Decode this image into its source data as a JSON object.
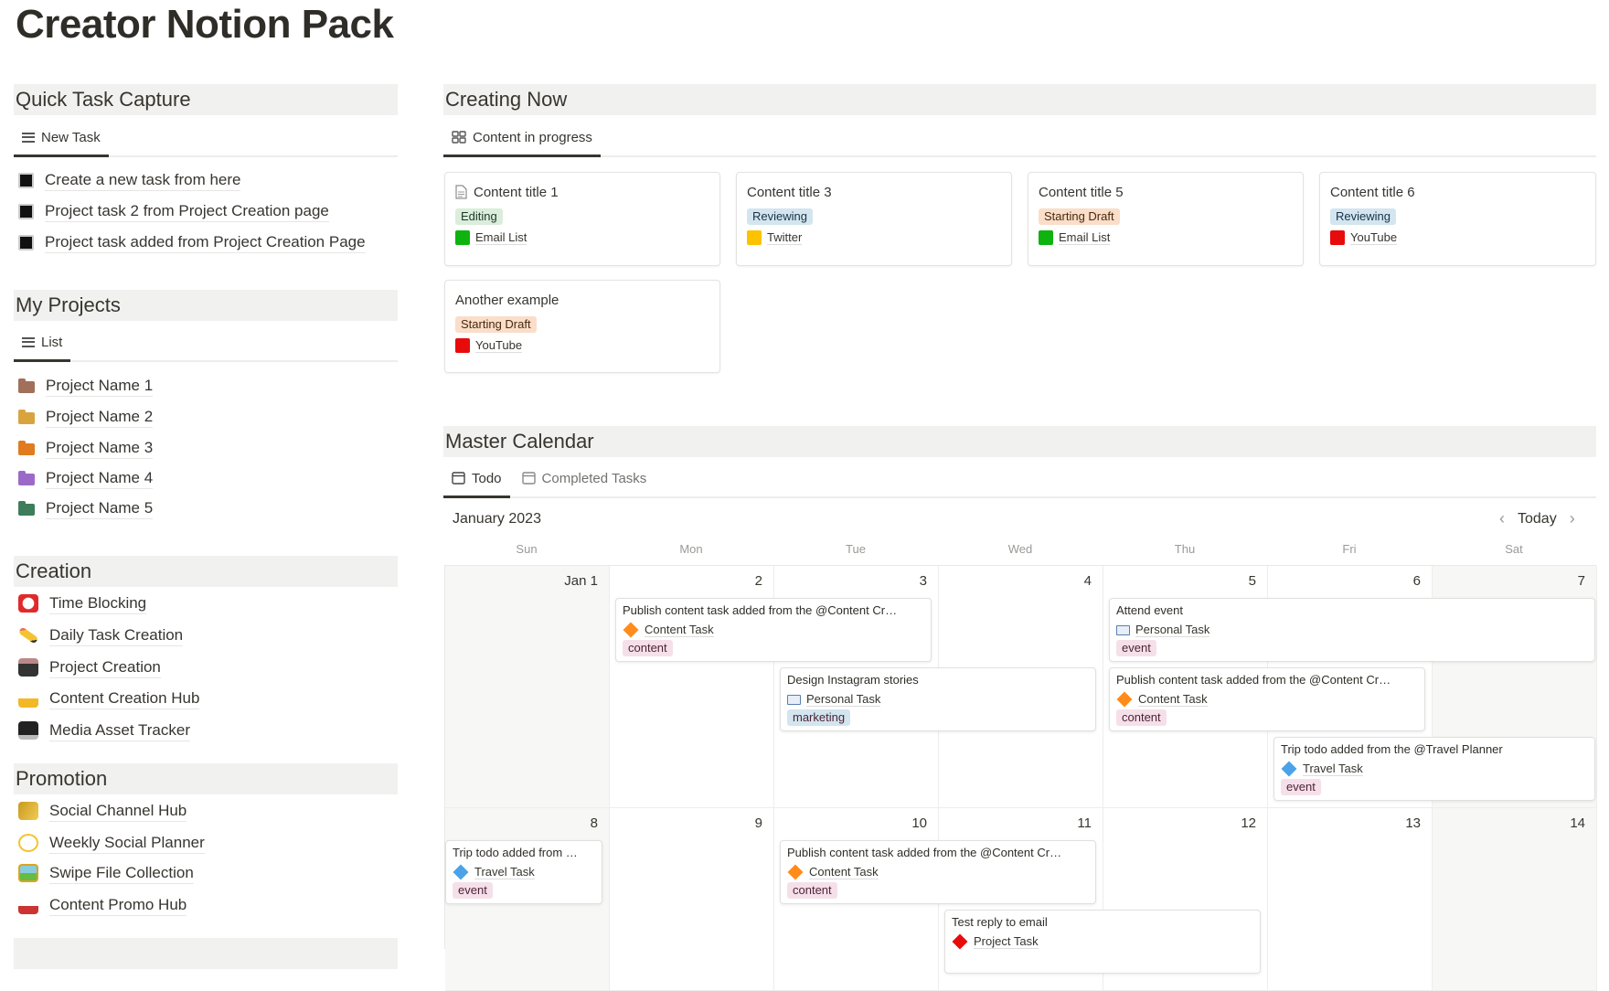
{
  "title": "Creator Notion Pack",
  "quick_task": {
    "header": "Quick Task Capture",
    "tab": "New Task",
    "tasks": [
      "Create a new task from here",
      "Project task 2 from Project Creation page",
      "Project task added from Project Creation Page"
    ]
  },
  "projects": {
    "header": "My Projects",
    "tab": "List",
    "items": [
      {
        "label": "Project Name 1",
        "color": "#a0705a"
      },
      {
        "label": "Project Name 2",
        "color": "#d9a43d"
      },
      {
        "label": "Project Name 3",
        "color": "#e07b1f"
      },
      {
        "label": "Project Name 4",
        "color": "#9b6ac8"
      },
      {
        "label": "Project Name 5",
        "color": "#3d7d5a"
      }
    ]
  },
  "creation": {
    "header": "Creation",
    "items": [
      {
        "label": "Time Blocking",
        "icon": "alarm-clock-icon"
      },
      {
        "label": "Daily Task Creation",
        "icon": "pencil-icon"
      },
      {
        "label": "Project Creation",
        "icon": "file-cabinet-icon"
      },
      {
        "label": "Content Creation Hub",
        "icon": "writing-hand-icon"
      },
      {
        "label": "Media Asset Tracker",
        "icon": "desktop-computer-icon"
      }
    ]
  },
  "promotion": {
    "header": "Promotion",
    "items": [
      {
        "label": "Social Channel Hub",
        "icon": "megaphone-icon"
      },
      {
        "label": "Weekly Social Planner",
        "icon": "dizzy-icon"
      },
      {
        "label": "Swipe File Collection",
        "icon": "framed-picture-icon"
      },
      {
        "label": "Content Promo Hub",
        "icon": "ship-icon"
      }
    ]
  },
  "creating_now": {
    "header": "Creating Now",
    "tab": "Content in progress",
    "cards": [
      {
        "title": "Content title 1",
        "status": "Editing",
        "channel": "Email List"
      },
      {
        "title": "Content title 3",
        "status": "Reviewing",
        "channel": "Twitter"
      },
      {
        "title": "Content title 5",
        "status": "Starting Draft",
        "channel": "Email List"
      },
      {
        "title": "Content title 6",
        "status": "Reviewing",
        "channel": "YouTube"
      },
      {
        "title": "Another example",
        "status": "Starting Draft",
        "channel": "YouTube"
      }
    ]
  },
  "calendar": {
    "header": "Master Calendar",
    "tabs": [
      "Todo",
      "Completed Tasks"
    ],
    "month": "January 2023",
    "today": "Today",
    "weekdays": [
      "Sun",
      "Mon",
      "Tue",
      "Wed",
      "Thu",
      "Fri",
      "Sat"
    ],
    "days": [
      "Jan 1",
      "2",
      "3",
      "4",
      "5",
      "6",
      "7",
      "8",
      "9",
      "10",
      "11",
      "12",
      "13",
      "14"
    ],
    "events": [
      {
        "title": "Publish content task added from the @Content Cr…",
        "type": "Content Task",
        "tag": "content"
      },
      {
        "title": "Attend event",
        "type": "Personal Task",
        "tag": "event"
      },
      {
        "title": "Design Instagram stories",
        "type": "Personal Task",
        "tag": "marketing"
      },
      {
        "title": "Publish content task added from the @Content Cr…",
        "type": "Content Task",
        "tag": "content"
      },
      {
        "title": "Trip todo added from the @Travel Planner",
        "type": "Travel Task",
        "tag": "event"
      },
      {
        "title": "Trip todo added from …",
        "type": "Travel Task",
        "tag": "event"
      },
      {
        "title": "Publish content task added from the @Content Cr…",
        "type": "Content Task",
        "tag": "content"
      },
      {
        "title": "Test reply to email",
        "type": "Project Task",
        "tag": ""
      }
    ]
  },
  "colors": {
    "editing": "#dbeddb",
    "reviewing": "#d3e5ef",
    "starting_draft": "#fadec9",
    "tag_pink": "#f5e0e9",
    "tag_blue": "#d3e5ef",
    "green": "#0fb30f",
    "yellow": "#fdc200",
    "red": "#e80b0b",
    "orange_diamond": "#ff8c1a",
    "blue_diamond": "#4aa3e8"
  }
}
